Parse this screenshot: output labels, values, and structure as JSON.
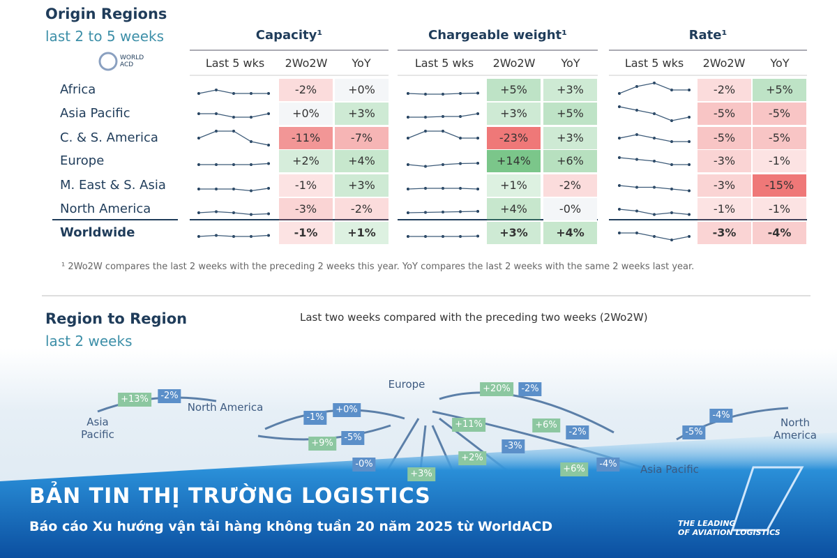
{
  "header": {
    "title": "Origin Regions",
    "subtitle": "last 2 to 5 weeks",
    "logo": [
      "WORLD",
      "ACD"
    ]
  },
  "table": {
    "groups": [
      {
        "title": "Capacity¹",
        "headers": [
          "Last 5 wks",
          "2Wo2W",
          "YoY"
        ]
      },
      {
        "title": "Chargeable weight¹",
        "headers": [
          "Last 5 wks",
          "2Wo2W",
          "YoY"
        ]
      },
      {
        "title": "Rate¹",
        "headers": [
          "Last 5 wks",
          "2Wo2W",
          "YoY"
        ]
      }
    ],
    "rows": [
      {
        "region": "Africa",
        "cells": [
          [
            "-2%",
            "+0%"
          ],
          [
            "+5%",
            "+3%"
          ],
          [
            "-2%",
            "+5%"
          ]
        ],
        "sparks": [
          [
            2,
            3,
            2,
            2,
            2
          ],
          [
            2,
            1.8,
            1.8,
            2,
            2.1
          ],
          [
            2,
            4,
            5,
            3,
            3
          ]
        ]
      },
      {
        "region": "Asia Pacific",
        "cells": [
          [
            "+0%",
            "+3%"
          ],
          [
            "+3%",
            "+5%"
          ],
          [
            "-5%",
            "-5%"
          ]
        ],
        "sparks": [
          [
            3,
            3,
            2,
            2,
            3
          ],
          [
            2,
            2,
            2.2,
            2.2,
            3
          ],
          [
            5,
            4,
            3,
            1,
            2
          ]
        ]
      },
      {
        "region": "C. & S. America",
        "cells": [
          [
            "-11%",
            "-7%"
          ],
          [
            "-23%",
            "+3%"
          ],
          [
            "-5%",
            "-5%"
          ]
        ],
        "sparks": [
          [
            3,
            5,
            5,
            2,
            1
          ],
          [
            3,
            5,
            5,
            3,
            3
          ],
          [
            3,
            4,
            3,
            2,
            2
          ]
        ]
      },
      {
        "region": "Europe",
        "cells": [
          [
            "+2%",
            "+4%"
          ],
          [
            "+14%",
            "+6%"
          ],
          [
            "-3%",
            "-1%"
          ]
        ],
        "sparks": [
          [
            2,
            2,
            2,
            2,
            2.3
          ],
          [
            2,
            1.5,
            2,
            2.3,
            2.4
          ],
          [
            4,
            3.5,
            3,
            2,
            2
          ]
        ]
      },
      {
        "region": "M. East & S. Asia",
        "cells": [
          [
            "-1%",
            "+3%"
          ],
          [
            "+1%",
            "-2%"
          ],
          [
            "-3%",
            "-15%"
          ]
        ],
        "sparks": [
          [
            2,
            2,
            2,
            1.5,
            2.2
          ],
          [
            2,
            2.2,
            2.2,
            2.2,
            2
          ],
          [
            3,
            2.5,
            2.5,
            2,
            1.5
          ]
        ]
      },
      {
        "region": "North America",
        "cells": [
          [
            "-3%",
            "-2%"
          ],
          [
            "+4%",
            "-0%"
          ],
          [
            "-1%",
            "-1%"
          ]
        ],
        "sparks": [
          [
            2,
            2.3,
            2,
            1.5,
            1.7
          ],
          [
            2,
            2.1,
            2.2,
            2.3,
            2.4
          ],
          [
            3,
            2.5,
            1.5,
            2,
            1.5
          ]
        ]
      },
      {
        "region": "Worldwide",
        "cells": [
          [
            "-1%",
            "+1%"
          ],
          [
            "+3%",
            "+4%"
          ],
          [
            "-3%",
            "-4%"
          ]
        ],
        "sparks": [
          [
            2,
            2.3,
            2,
            2,
            2.3
          ],
          [
            2,
            2,
            2,
            2,
            2.1
          ],
          [
            3,
            3,
            2,
            1,
            2
          ]
        ]
      }
    ],
    "footnote": "¹ 2Wo2W compares the last 2 weeks with the preceding 2 weeks this year. YoY compares the last 2 weeks with the same 2 weeks last year."
  },
  "map": {
    "title": "Region to Region",
    "subtitle": "last 2 weeks",
    "caption": "Last two weeks compared with the preceding two weeks (2Wo2W)",
    "regions": [
      "Asia Pacific",
      "North America",
      "Europe",
      "North America",
      "Asia Pacific"
    ],
    "badges": [
      "+13%",
      "-2%",
      "-1%",
      "+0%",
      "+9%",
      "-5%",
      "+20%",
      "-2%",
      "+11%",
      "+6%",
      "-2%",
      "-3%",
      "-5%",
      "-4%",
      "+2%",
      "-0%",
      "+6%",
      "-4%",
      "+3%"
    ]
  },
  "banner": {
    "title": "BẢN TIN THỊ TRƯỜNG LOGISTICS",
    "subtitle": "Báo cáo Xu hướng vận tải hàng không tuần 20 năm 2025 từ WorldACD",
    "tagline": [
      "THE LEADING",
      "OF AVIATION LOGISTICS"
    ]
  }
}
